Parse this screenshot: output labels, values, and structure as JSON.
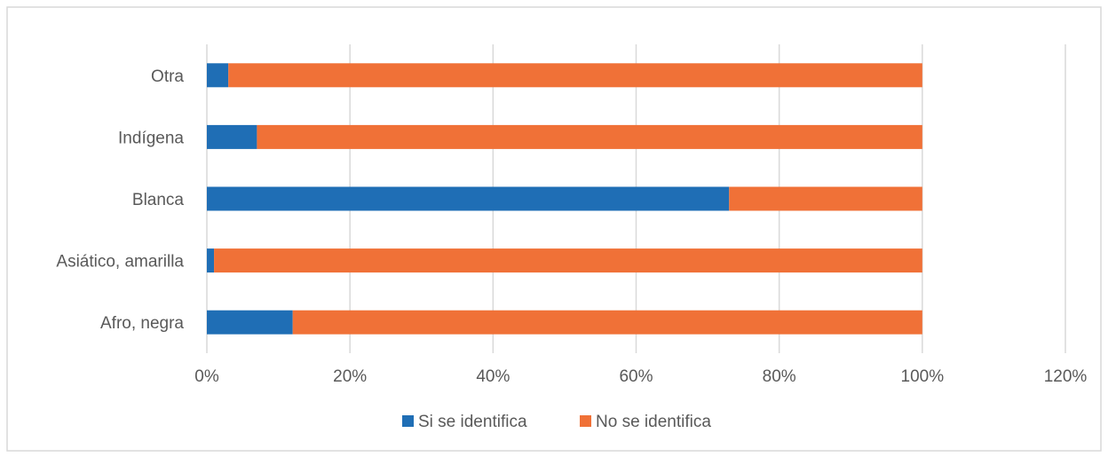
{
  "chart_data": {
    "type": "bar",
    "orientation": "horizontal",
    "stacked": true,
    "categories": [
      "Otra",
      "Indígena",
      "Blanca",
      "Asiático, amarilla",
      "Afro, negra"
    ],
    "series": [
      {
        "name": "Si se identifica",
        "color": "#1f6eb5",
        "values": [
          0.03,
          0.07,
          0.73,
          0.01,
          0.12
        ]
      },
      {
        "name": "No se identifica",
        "color": "#f07137",
        "values": [
          0.97,
          0.93,
          0.27,
          0.99,
          0.88
        ]
      }
    ],
    "xlim": [
      0,
      1.2
    ],
    "x_ticks": [
      0,
      0.2,
      0.4,
      0.6,
      0.8,
      1.0,
      1.2
    ],
    "x_tick_labels": [
      "0%",
      "20%",
      "40%",
      "60%",
      "80%",
      "100%",
      "120%"
    ],
    "grid": true,
    "legend_position": "bottom"
  }
}
